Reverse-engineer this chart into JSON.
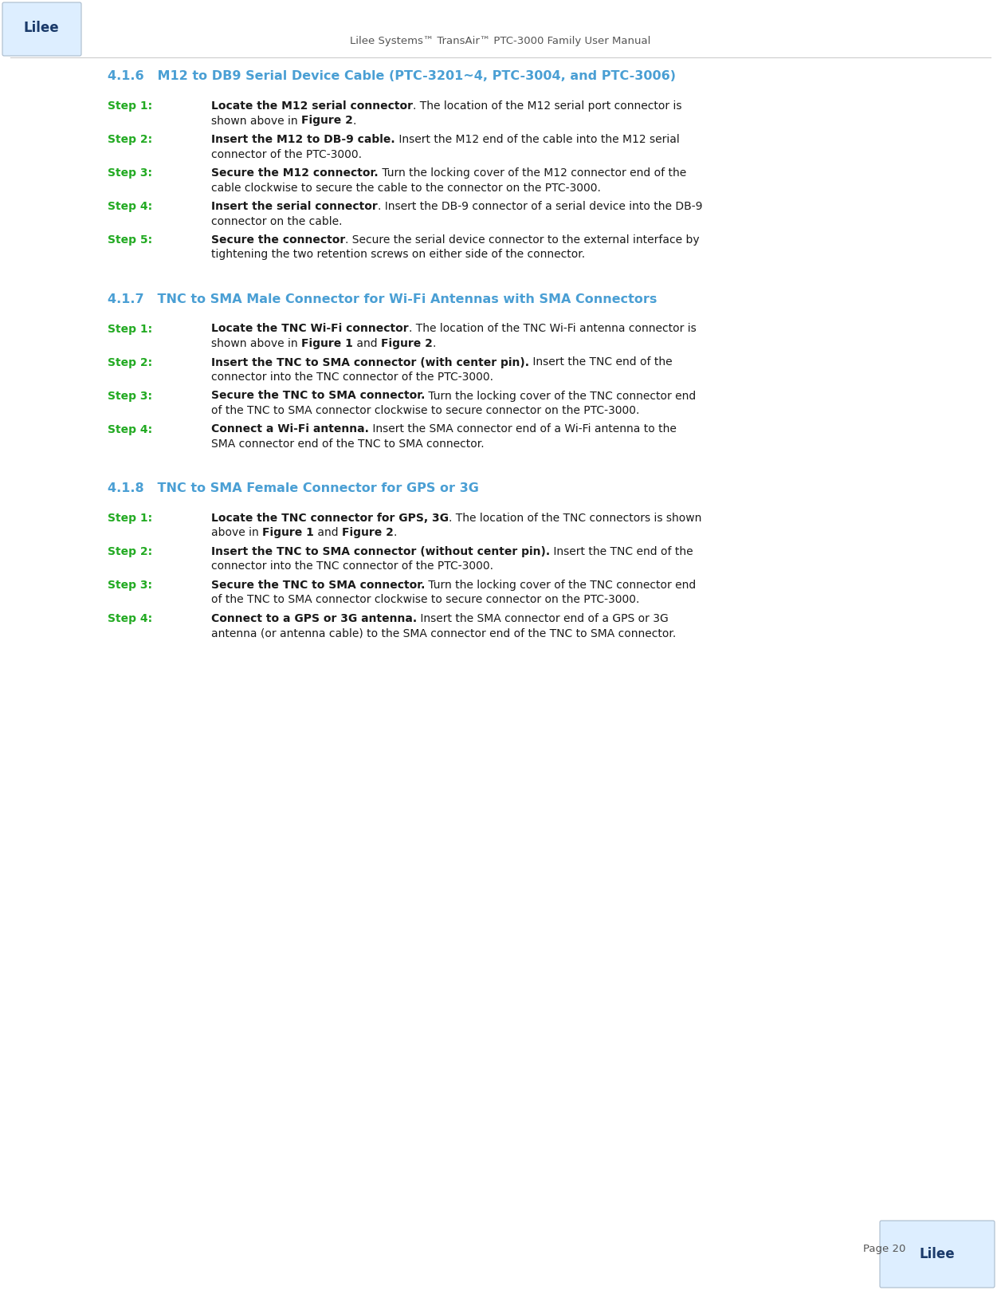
{
  "header_text": "Lilee Systems™ TransAir™ PTC-3000 Family User Manual",
  "page_number": "Page 20",
  "background_color": "#ffffff",
  "header_color": "#555555",
  "section_color": "#4a9fd4",
  "step_label_color": "#22aa22",
  "body_color": "#1a1a1a",
  "sections": [
    {
      "heading": "4.1.6   M12 to DB9 Serial Device Cable (PTC-3201~4, PTC-3004, and PTC-3006)",
      "steps": [
        {
          "label": "Step 1:",
          "line1_bold": "Locate the M12 serial connector",
          "line1_rest": ". The location of the M12 serial port connector is",
          "line2": "shown above in ",
          "line2_bold": "Figure 2",
          "line2_rest": "."
        },
        {
          "label": "Step 2:",
          "line1_bold": "Insert the M12 to DB-9 cable.",
          "line1_rest": " Insert the M12 end of the cable into the M12 serial",
          "line2": "connector of the PTC-3000.",
          "line2_bold": "",
          "line2_rest": ""
        },
        {
          "label": "Step 3:",
          "line1_bold": "Secure the M12 connector.",
          "line1_rest": " Turn the locking cover of the M12 connector end of the",
          "line2": "cable clockwise to secure the cable to the connector on the PTC-3000.",
          "line2_bold": "",
          "line2_rest": ""
        },
        {
          "label": "Step 4:",
          "line1_bold": "Insert the serial connector",
          "line1_rest": ". Insert the DB-9 connector of a serial device into the DB-9",
          "line2": "connector on the cable.",
          "line2_bold": "",
          "line2_rest": ""
        },
        {
          "label": "Step 5:",
          "line1_bold": "Secure the connector",
          "line1_rest": ". Secure the serial device connector to the external interface by",
          "line2": "tightening the two retention screws on either side of the connector.",
          "line2_bold": "",
          "line2_rest": ""
        }
      ]
    },
    {
      "heading": "4.1.7   TNC to SMA Male Connector for Wi-Fi Antennas with SMA Connectors",
      "steps": [
        {
          "label": "Step 1:",
          "line1_bold": "Locate the TNC Wi-Fi connector",
          "line1_rest": ". The location of the TNC Wi-Fi antenna connector is",
          "line2": "shown above in ",
          "line2_bold": "Figure 1",
          "line2_rest": " and ",
          "line2_bold2": "Figure 2",
          "line2_rest2": "."
        },
        {
          "label": "Step 2:",
          "line1_bold": "Insert the TNC to SMA connector (with center pin).",
          "line1_rest": " Insert the TNC end of the",
          "line2": "connector into the TNC connector of the PTC-3000.",
          "line2_bold": "",
          "line2_rest": ""
        },
        {
          "label": "Step 3:",
          "line1_bold": "Secure the TNC to SMA connector.",
          "line1_rest": " Turn the locking cover of the TNC connector end",
          "line2": "of the TNC to SMA connector clockwise to secure connector on the PTC-3000.",
          "line2_bold": "",
          "line2_rest": ""
        },
        {
          "label": "Step 4:",
          "line1_bold": "Connect a Wi-Fi antenna.",
          "line1_rest": " Insert the SMA connector end of a Wi-Fi antenna to the",
          "line2": "SMA connector end of the TNC to SMA connector.",
          "line2_bold": "",
          "line2_rest": ""
        }
      ]
    },
    {
      "heading": "4.1.8   TNC to SMA Female Connector for GPS or 3G",
      "steps": [
        {
          "label": "Step 1:",
          "line1_bold": "Locate the TNC connector for GPS, 3G",
          "line1_rest": ". The location of the TNC connectors is shown",
          "line2": "above in ",
          "line2_bold": "Figure 1",
          "line2_rest": " and ",
          "line2_bold2": "Figure 2",
          "line2_rest2": "."
        },
        {
          "label": "Step 2:",
          "line1_bold": "Insert the TNC to SMA connector (without center pin).",
          "line1_rest": " Insert the TNC end of the",
          "line2": "connector into the TNC connector of the PTC-3000.",
          "line2_bold": "",
          "line2_rest": ""
        },
        {
          "label": "Step 3:",
          "line1_bold": "Secure the TNC to SMA connector.",
          "line1_rest": " Turn the locking cover of the TNC connector end",
          "line2": "of the TNC to SMA connector clockwise to secure connector on the PTC-3000.",
          "line2_bold": "",
          "line2_rest": ""
        },
        {
          "label": "Step 4:",
          "line1_bold": "Connect to a GPS or 3G antenna.",
          "line1_rest": " Insert the SMA connector end of a GPS or 3G",
          "line2": "antenna (or antenna cable) to the SMA connector end of the TNC to SMA connector.",
          "line2_bold": "",
          "line2_rest": ""
        }
      ]
    }
  ],
  "figsize": [
    12.56,
    16.23
  ],
  "dpi": 100
}
